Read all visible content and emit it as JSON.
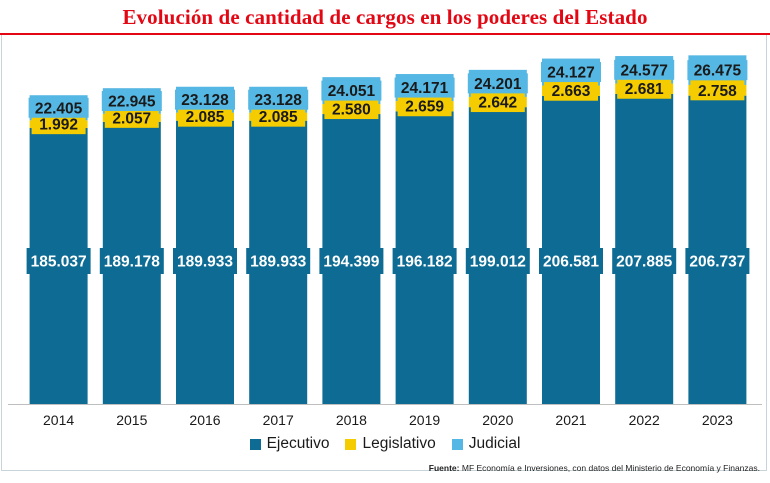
{
  "title": "Evolución de cantidad de cargos en los poderes del Estado",
  "source": {
    "label": "Fuente:",
    "text": "MF Economía e Inversiones, con datos del Ministerio de Economía y Finanzas."
  },
  "colors": {
    "ejecutivo": "#0e6c94",
    "legislativo": "#f5cc00",
    "judicial": "#55b7e3",
    "title": "#e30613"
  },
  "chart_data": {
    "type": "bar",
    "stacked": true,
    "title": "Evolución de cantidad de cargos en los poderes del Estado",
    "categories": [
      "2014",
      "2015",
      "2016",
      "2017",
      "2018",
      "2019",
      "2020",
      "2021",
      "2022",
      "2023"
    ],
    "series": [
      {
        "name": "Ejecutivo",
        "key": "ejecutivo",
        "values": [
          185037,
          189178,
          189933,
          189933,
          194399,
          196182,
          199012,
          206581,
          207885,
          206737
        ],
        "labels": [
          "185.037",
          "189.178",
          "189.933",
          "189.933",
          "194.399",
          "196.182",
          "199.012",
          "206.581",
          "207.885",
          "206.737"
        ]
      },
      {
        "name": "Legislativo",
        "key": "legislativo",
        "values": [
          1992,
          2057,
          2085,
          2085,
          2580,
          2659,
          2642,
          2663,
          2681,
          2758
        ],
        "labels": [
          "1.992",
          "2.057",
          "2.085",
          "2.085",
          "2.580",
          "2.659",
          "2.642",
          "2.663",
          "2.681",
          "2.758"
        ]
      },
      {
        "name": "Judicial",
        "key": "judicial",
        "values": [
          22405,
          22945,
          23128,
          23128,
          24051,
          24171,
          24201,
          24127,
          24577,
          26475
        ],
        "labels": [
          "22.405",
          "22.945",
          "23.128",
          "23.128",
          "24.051",
          "24.171",
          "24.201",
          "24.127",
          "24.577",
          "26.475"
        ]
      }
    ],
    "legend_position": "bottom",
    "xlabel": "",
    "ylabel": ""
  }
}
